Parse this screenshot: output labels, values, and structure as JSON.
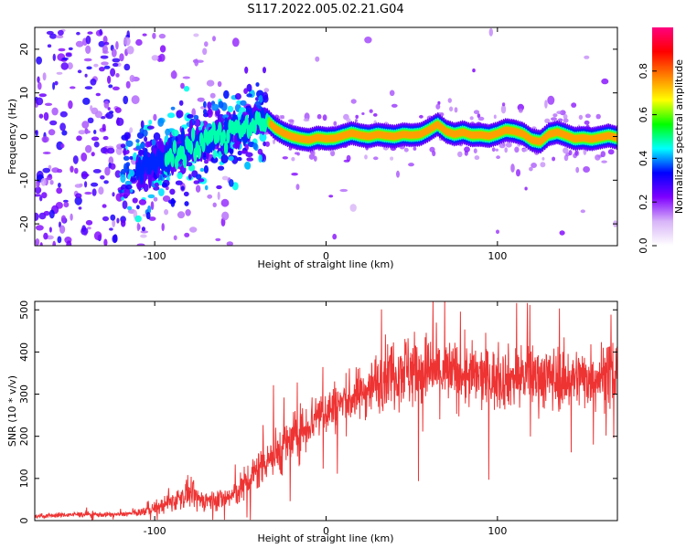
{
  "figure": {
    "title": "S117.2022.005.02.21.G04"
  },
  "chart_data": [
    {
      "type": "heatmap",
      "xlabel": "Height of straight line (km)",
      "ylabel": "Frequency (Hz)",
      "xlim": [
        -170,
        170
      ],
      "ylim": [
        -25,
        25
      ],
      "xticks": [
        -100,
        0,
        100
      ],
      "yticks": [
        -20,
        -10,
        0,
        10,
        20
      ],
      "grid": false,
      "colorbar": {
        "label": "Normalized spectral amplitude",
        "range": [
          0.0,
          1.0
        ],
        "ticks": [
          0.0,
          0.2,
          0.4,
          0.6,
          0.8
        ],
        "colors": [
          "#ffffff",
          "#d8b4f8",
          "#7f00ff",
          "#0000ff",
          "#00ffff",
          "#00ff00",
          "#ffff00",
          "#ff8000",
          "#ff0000",
          "#ff0080"
        ]
      },
      "ridge": {
        "x": [
          -110,
          -100,
          -90,
          -80,
          -70,
          -60,
          -50,
          -40,
          -35,
          -30,
          -25,
          -20,
          -15,
          -10,
          -5,
          0,
          5,
          10,
          15,
          20,
          25,
          30,
          35,
          40,
          45,
          50,
          55,
          60,
          65,
          70,
          75,
          80,
          85,
          90,
          95,
          100,
          105,
          110,
          115,
          120,
          125,
          130,
          135,
          140,
          145,
          150,
          155,
          160,
          165,
          170
        ],
        "y": [
          -8,
          -6,
          -4,
          -2.5,
          -1,
          0.5,
          2,
          3.5,
          4,
          2,
          0.8,
          0,
          -0.5,
          -0.8,
          -0.2,
          -0.5,
          -0.4,
          0.2,
          0.8,
          0.3,
          0,
          0.5,
          0.2,
          0,
          0.5,
          0.3,
          0.5,
          1.5,
          2.8,
          1.2,
          0.5,
          1.0,
          0.3,
          0.4,
          0.1,
          0.7,
          1.5,
          1.2,
          0.6,
          -0.8,
          -1.2,
          0.5,
          1.0,
          0.3,
          -0.5,
          -0.3,
          -0.6,
          -0.2,
          0.2,
          -0.3
        ],
        "strength": [
          0.35,
          0.4,
          0.45,
          0.45,
          0.5,
          0.5,
          0.5,
          0.55,
          0.5,
          0.85,
          0.85,
          0.8,
          0.85,
          0.85,
          0.8,
          0.85,
          0.85,
          0.85,
          0.85,
          0.85,
          0.85,
          0.85,
          0.85,
          0.85,
          0.85,
          0.85,
          0.85,
          0.85,
          0.85,
          0.85,
          0.85,
          0.85,
          0.85,
          0.85,
          0.85,
          0.85,
          0.85,
          0.85,
          0.85,
          0.8,
          0.85,
          0.85,
          0.85,
          0.85,
          0.85,
          0.85,
          0.85,
          0.85,
          0.85,
          0.85
        ]
      }
    },
    {
      "type": "line",
      "xlabel": "Height of straight line (km)",
      "ylabel": "SNR (10 * v/v)",
      "xlim": [
        -170,
        170
      ],
      "ylim": [
        0,
        520
      ],
      "xticks": [
        -100,
        0,
        100
      ],
      "yticks": [
        0,
        100,
        200,
        300,
        400,
        500
      ],
      "grid": false,
      "series": [
        {
          "color": "#ee3333",
          "x": [
            -170,
            -160,
            -150,
            -140,
            -130,
            -120,
            -110,
            -100,
            -95,
            -90,
            -85,
            -80,
            -75,
            -70,
            -65,
            -60,
            -55,
            -50,
            -45,
            -40,
            -35,
            -30,
            -25,
            -20,
            -15,
            -10,
            -5,
            0,
            5,
            10,
            15,
            20,
            25,
            30,
            35,
            40,
            45,
            50,
            60,
            70,
            80,
            90,
            100,
            110,
            120,
            130,
            140,
            150,
            160,
            170
          ],
          "values": [
            10,
            12,
            14,
            15,
            14,
            15,
            18,
            30,
            35,
            45,
            55,
            65,
            50,
            48,
            50,
            52,
            58,
            75,
            95,
            120,
            150,
            155,
            175,
            190,
            210,
            230,
            255,
            260,
            270,
            280,
            290,
            300,
            315,
            330,
            350,
            355,
            360,
            360,
            355,
            350,
            345,
            340,
            335,
            340,
            345,
            340,
            335,
            340,
            345,
            350
          ],
          "noise": [
            5,
            5,
            5,
            6,
            5,
            5,
            6,
            15,
            18,
            22,
            25,
            30,
            25,
            22,
            22,
            25,
            28,
            35,
            40,
            45,
            50,
            55,
            55,
            55,
            55,
            55,
            55,
            55,
            55,
            55,
            55,
            55,
            60,
            65,
            70,
            75,
            80,
            85,
            80,
            75,
            70,
            70,
            65,
            65,
            70,
            70,
            65,
            65,
            70,
            70
          ]
        }
      ]
    }
  ]
}
